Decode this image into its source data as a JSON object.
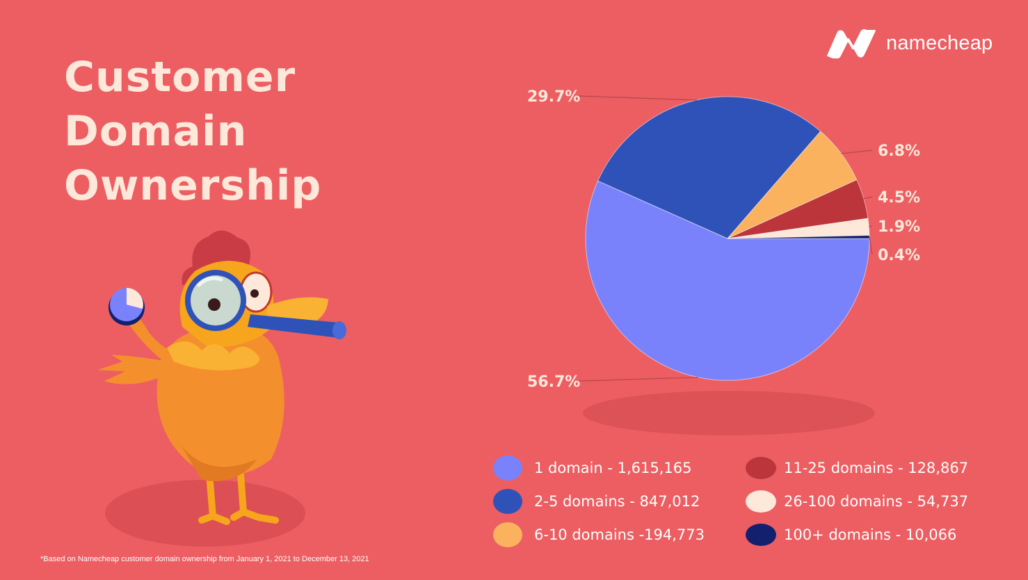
{
  "title_lines": [
    "Customer",
    "Domain",
    "Ownership"
  ],
  "logo": {
    "text": "namecheap",
    "icon": "namecheap-n-logo"
  },
  "footnote": "*Based on Namecheap customer domain ownership from January 1, 2021 to December 13, 2021",
  "illustration": "chicken-with-magnifying-glass",
  "colors": {
    "background": "#ec5e62",
    "title": "#fde8da"
  },
  "chart_data": {
    "type": "pie",
    "title": "Customer Domain Ownership",
    "slices": [
      {
        "legend": "1 domain - 1,615,165",
        "value": 1615165,
        "percent_label": "56.7%",
        "color": "#7a82fb"
      },
      {
        "legend": "2-5 domains - 847,012",
        "value": 847012,
        "percent_label": "29.7%",
        "color": "#2f52b8"
      },
      {
        "legend": "6-10 domains -194,773",
        "value": 194773,
        "percent_label": "6.8%",
        "color": "#fbb25e"
      },
      {
        "legend": "11-25 domains - 128,867",
        "value": 128867,
        "percent_label": "4.5%",
        "color": "#bb353b"
      },
      {
        "legend": "26-100 domains - 54,737",
        "value": 54737,
        "percent_label": "1.9%",
        "color": "#fde8da"
      },
      {
        "legend": "100+ domains - 10,066",
        "value": 10066,
        "percent_label": "0.4%",
        "color": "#13206d"
      }
    ],
    "legend_position": "bottom"
  }
}
